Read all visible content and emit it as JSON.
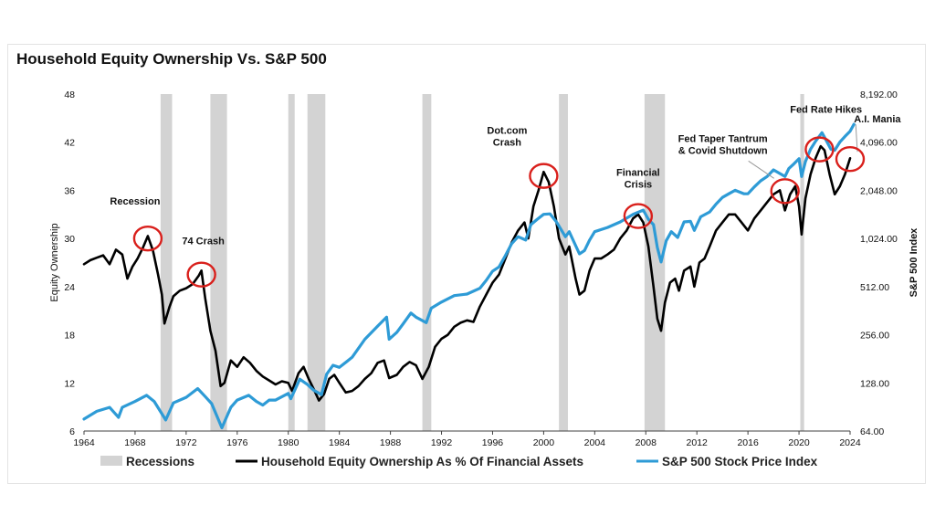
{
  "chart_data": {
    "type": "line",
    "title": "Household Equity Ownership Vs. S&P 500",
    "ylabel": "Equity Ownership",
    "y2label": "S&P 500 Index",
    "xlim": [
      1964,
      2024
    ],
    "ylim": [
      6,
      48
    ],
    "y2lim": [
      64,
      8192
    ],
    "y2scale": "log2",
    "x_ticks": [
      "1964",
      "1968",
      "1972",
      "1976",
      "1980",
      "1984",
      "1988",
      "1992",
      "1996",
      "2000",
      "2004",
      "2008",
      "2012",
      "2016",
      "2020",
      "2024"
    ],
    "y_ticks": [
      "6",
      "12",
      "18",
      "24",
      "30",
      "36",
      "42",
      "48"
    ],
    "y2_ticks": [
      "64.00",
      "128.00",
      "256.00",
      "512.00",
      "1,024.00",
      "2,048.00",
      "4,096.00",
      "8,192.00"
    ],
    "grid": false,
    "legend_position": "bottom",
    "recessions": [
      [
        1970.0,
        1970.9
      ],
      [
        1973.9,
        1975.2
      ],
      [
        1980.0,
        1980.5
      ],
      [
        1981.5,
        1982.9
      ],
      [
        1990.5,
        1991.2
      ],
      [
        2001.2,
        2001.9
      ],
      [
        2007.9,
        2009.5
      ],
      [
        2020.1,
        2020.4
      ]
    ],
    "annotations": [
      {
        "lines": [
          "Recession"
        ],
        "x": 1969.0,
        "y": 30.0
      },
      {
        "lines": [
          "74 Crash"
        ],
        "x": 1973.2,
        "y": 25.5
      },
      {
        "lines": [
          "Dot.com",
          "Crash"
        ],
        "x": 2000.0,
        "y": 37.8
      },
      {
        "lines": [
          "Financial",
          "Crisis"
        ],
        "x": 2007.4,
        "y": 32.8
      },
      {
        "lines": [
          "Fed Taper Tantrum",
          "& Covid Shutdown"
        ],
        "x": 2018.9,
        "y": 35.9
      },
      {
        "lines": [
          "Fed Rate Hikes"
        ],
        "x": 2021.6,
        "y": 41.1
      },
      {
        "lines": [
          "A.I. Mania"
        ],
        "x": 2024.0,
        "y": 39.9
      }
    ],
    "series": [
      {
        "name": "Household Equity Ownership As % Of Financial Assets",
        "axis": "left",
        "color": "#000000",
        "points": [
          [
            1964.0,
            26.8
          ],
          [
            1964.5,
            27.3
          ],
          [
            1965.0,
            27.6
          ],
          [
            1965.5,
            27.9
          ],
          [
            1966.0,
            26.8
          ],
          [
            1966.5,
            28.6
          ],
          [
            1967.0,
            28.0
          ],
          [
            1967.4,
            25.0
          ],
          [
            1967.8,
            26.5
          ],
          [
            1968.2,
            27.5
          ],
          [
            1968.6,
            28.8
          ],
          [
            1969.0,
            30.3
          ],
          [
            1969.4,
            28.5
          ],
          [
            1969.8,
            25.5
          ],
          [
            1970.1,
            23.0
          ],
          [
            1970.3,
            19.4
          ],
          [
            1970.7,
            21.5
          ],
          [
            1971.0,
            22.8
          ],
          [
            1971.5,
            23.5
          ],
          [
            1972.0,
            23.8
          ],
          [
            1972.5,
            24.3
          ],
          [
            1973.0,
            25.4
          ],
          [
            1973.2,
            26.0
          ],
          [
            1973.5,
            22.5
          ],
          [
            1973.9,
            18.5
          ],
          [
            1974.3,
            16.0
          ],
          [
            1974.7,
            11.6
          ],
          [
            1975.0,
            12.0
          ],
          [
            1975.5,
            14.8
          ],
          [
            1976.0,
            14.0
          ],
          [
            1976.5,
            15.2
          ],
          [
            1977.0,
            14.5
          ],
          [
            1977.5,
            13.5
          ],
          [
            1978.0,
            12.8
          ],
          [
            1978.5,
            12.3
          ],
          [
            1979.0,
            11.8
          ],
          [
            1979.5,
            12.2
          ],
          [
            1980.0,
            12.0
          ],
          [
            1980.3,
            11.0
          ],
          [
            1980.8,
            13.2
          ],
          [
            1981.2,
            14.0
          ],
          [
            1981.6,
            12.5
          ],
          [
            1982.0,
            11.2
          ],
          [
            1982.4,
            9.8
          ],
          [
            1982.8,
            10.6
          ],
          [
            1983.2,
            12.5
          ],
          [
            1983.6,
            13.0
          ],
          [
            1984.0,
            12.0
          ],
          [
            1984.5,
            10.8
          ],
          [
            1985.0,
            11.0
          ],
          [
            1985.5,
            11.6
          ],
          [
            1986.0,
            12.5
          ],
          [
            1986.5,
            13.2
          ],
          [
            1987.0,
            14.5
          ],
          [
            1987.5,
            14.8
          ],
          [
            1987.9,
            12.6
          ],
          [
            1988.5,
            13.0
          ],
          [
            1989.0,
            14.0
          ],
          [
            1989.5,
            14.6
          ],
          [
            1990.0,
            14.2
          ],
          [
            1990.5,
            12.5
          ],
          [
            1991.0,
            14.0
          ],
          [
            1991.5,
            16.5
          ],
          [
            1992.0,
            17.5
          ],
          [
            1992.5,
            18.0
          ],
          [
            1993.0,
            19.0
          ],
          [
            1993.5,
            19.5
          ],
          [
            1994.0,
            19.8
          ],
          [
            1994.5,
            19.6
          ],
          [
            1995.0,
            21.5
          ],
          [
            1995.5,
            23.0
          ],
          [
            1996.0,
            24.5
          ],
          [
            1996.5,
            25.5
          ],
          [
            1997.0,
            27.5
          ],
          [
            1997.5,
            29.5
          ],
          [
            1998.0,
            31.0
          ],
          [
            1998.5,
            32.0
          ],
          [
            1998.8,
            30.0
          ],
          [
            1999.2,
            34.0
          ],
          [
            1999.6,
            36.0
          ],
          [
            2000.0,
            38.3
          ],
          [
            2000.4,
            37.0
          ],
          [
            2000.8,
            34.0
          ],
          [
            2001.2,
            30.0
          ],
          [
            2001.7,
            28.0
          ],
          [
            2002.0,
            29.0
          ],
          [
            2002.5,
            25.0
          ],
          [
            2002.8,
            23.0
          ],
          [
            2003.2,
            23.5
          ],
          [
            2003.6,
            26.0
          ],
          [
            2004.0,
            27.5
          ],
          [
            2004.5,
            27.5
          ],
          [
            2005.0,
            28.0
          ],
          [
            2005.5,
            28.6
          ],
          [
            2006.0,
            30.0
          ],
          [
            2006.5,
            31.0
          ],
          [
            2007.0,
            32.5
          ],
          [
            2007.4,
            33.0
          ],
          [
            2007.8,
            32.0
          ],
          [
            2008.2,
            29.0
          ],
          [
            2008.6,
            24.0
          ],
          [
            2008.9,
            20.0
          ],
          [
            2009.2,
            18.5
          ],
          [
            2009.5,
            22.0
          ],
          [
            2009.9,
            24.5
          ],
          [
            2010.3,
            25.0
          ],
          [
            2010.6,
            23.5
          ],
          [
            2011.0,
            26.0
          ],
          [
            2011.5,
            26.5
          ],
          [
            2011.8,
            24.0
          ],
          [
            2012.2,
            27.0
          ],
          [
            2012.6,
            27.5
          ],
          [
            2013.0,
            29.0
          ],
          [
            2013.5,
            31.0
          ],
          [
            2014.0,
            32.0
          ],
          [
            2014.5,
            33.0
          ],
          [
            2015.0,
            33.0
          ],
          [
            2015.5,
            32.0
          ],
          [
            2016.0,
            31.0
          ],
          [
            2016.5,
            32.5
          ],
          [
            2017.0,
            33.5
          ],
          [
            2017.5,
            34.5
          ],
          [
            2018.0,
            35.5
          ],
          [
            2018.5,
            36.0
          ],
          [
            2018.9,
            33.5
          ],
          [
            2019.3,
            35.5
          ],
          [
            2019.7,
            36.5
          ],
          [
            2020.0,
            34.0
          ],
          [
            2020.2,
            30.5
          ],
          [
            2020.5,
            35.0
          ],
          [
            2020.9,
            38.0
          ],
          [
            2021.3,
            40.0
          ],
          [
            2021.7,
            41.5
          ],
          [
            2022.0,
            41.0
          ],
          [
            2022.4,
            38.0
          ],
          [
            2022.8,
            35.5
          ],
          [
            2023.2,
            36.5
          ],
          [
            2023.6,
            38.0
          ],
          [
            2024.0,
            40.0
          ]
        ]
      },
      {
        "name": "S&P 500 Stock Price Index",
        "axis": "right",
        "color": "#2e9bd6",
        "points": [
          [
            1964.0,
            76
          ],
          [
            1965.0,
            85
          ],
          [
            1966.0,
            90
          ],
          [
            1966.7,
            78
          ],
          [
            1967.0,
            90
          ],
          [
            1968.0,
            98
          ],
          [
            1968.9,
            107
          ],
          [
            1969.5,
            98
          ],
          [
            1970.4,
            75
          ],
          [
            1971.0,
            96
          ],
          [
            1972.0,
            104
          ],
          [
            1972.9,
            118
          ],
          [
            1973.5,
            105
          ],
          [
            1974.0,
            95
          ],
          [
            1974.8,
            67
          ],
          [
            1975.5,
            90
          ],
          [
            1976.0,
            100
          ],
          [
            1976.9,
            107
          ],
          [
            1977.5,
            98
          ],
          [
            1978.0,
            93
          ],
          [
            1978.5,
            100
          ],
          [
            1979.0,
            100
          ],
          [
            1980.0,
            110
          ],
          [
            1980.2,
            102
          ],
          [
            1980.9,
            135
          ],
          [
            1981.5,
            125
          ],
          [
            1982.0,
            115
          ],
          [
            1982.6,
            108
          ],
          [
            1983.0,
            145
          ],
          [
            1983.5,
            165
          ],
          [
            1984.0,
            160
          ],
          [
            1985.0,
            185
          ],
          [
            1986.0,
            240
          ],
          [
            1987.0,
            290
          ],
          [
            1987.7,
            330
          ],
          [
            1987.9,
            240
          ],
          [
            1988.5,
            265
          ],
          [
            1989.0,
            300
          ],
          [
            1989.6,
            350
          ],
          [
            1990.0,
            330
          ],
          [
            1990.8,
            305
          ],
          [
            1991.2,
            375
          ],
          [
            1992.0,
            410
          ],
          [
            1993.0,
            450
          ],
          [
            1994.0,
            460
          ],
          [
            1995.0,
            500
          ],
          [
            1995.5,
            560
          ],
          [
            1996.0,
            640
          ],
          [
            1996.5,
            680
          ],
          [
            1997.0,
            800
          ],
          [
            1997.5,
            950
          ],
          [
            1998.0,
            1050
          ],
          [
            1998.6,
            1000
          ],
          [
            1999.0,
            1250
          ],
          [
            1999.5,
            1350
          ],
          [
            2000.0,
            1450
          ],
          [
            2000.5,
            1460
          ],
          [
            2001.0,
            1300
          ],
          [
            2001.7,
            1050
          ],
          [
            2002.0,
            1130
          ],
          [
            2002.8,
            820
          ],
          [
            2003.2,
            860
          ],
          [
            2003.6,
            1000
          ],
          [
            2004.0,
            1130
          ],
          [
            2005.0,
            1200
          ],
          [
            2006.0,
            1300
          ],
          [
            2007.0,
            1450
          ],
          [
            2007.8,
            1540
          ],
          [
            2008.2,
            1350
          ],
          [
            2008.6,
            1250
          ],
          [
            2008.9,
            900
          ],
          [
            2009.2,
            730
          ],
          [
            2009.6,
            990
          ],
          [
            2010.0,
            1130
          ],
          [
            2010.5,
            1040
          ],
          [
            2011.0,
            1300
          ],
          [
            2011.5,
            1310
          ],
          [
            2011.8,
            1150
          ],
          [
            2012.3,
            1400
          ],
          [
            2013.0,
            1500
          ],
          [
            2013.5,
            1680
          ],
          [
            2014.0,
            1850
          ],
          [
            2014.5,
            1950
          ],
          [
            2015.0,
            2050
          ],
          [
            2015.7,
            1950
          ],
          [
            2016.0,
            1950
          ],
          [
            2016.5,
            2150
          ],
          [
            2017.0,
            2350
          ],
          [
            2017.5,
            2500
          ],
          [
            2018.0,
            2750
          ],
          [
            2018.9,
            2500
          ],
          [
            2019.2,
            2800
          ],
          [
            2019.6,
            3000
          ],
          [
            2020.0,
            3230
          ],
          [
            2020.2,
            2500
          ],
          [
            2020.5,
            3100
          ],
          [
            2020.9,
            3700
          ],
          [
            2021.3,
            4150
          ],
          [
            2021.8,
            4700
          ],
          [
            2022.0,
            4400
          ],
          [
            2022.5,
            3700
          ],
          [
            2022.8,
            3650
          ],
          [
            2023.2,
            4100
          ],
          [
            2023.6,
            4450
          ],
          [
            2024.0,
            4800
          ],
          [
            2024.3,
            5300
          ]
        ]
      }
    ],
    "legend": [
      {
        "label": "Recessions",
        "kind": "box",
        "color": "#d3d3d3"
      },
      {
        "label": "Household Equity Ownership As % Of Financial Assets",
        "kind": "line",
        "color": "#000000"
      },
      {
        "label": "S&P 500 Stock Price Index",
        "kind": "line",
        "color": "#2e9bd6"
      }
    ],
    "colors": {
      "recession": "#d3d3d3",
      "highlight_circle": "#d9201c",
      "annotation_arrow": "#9a9a9a"
    }
  }
}
